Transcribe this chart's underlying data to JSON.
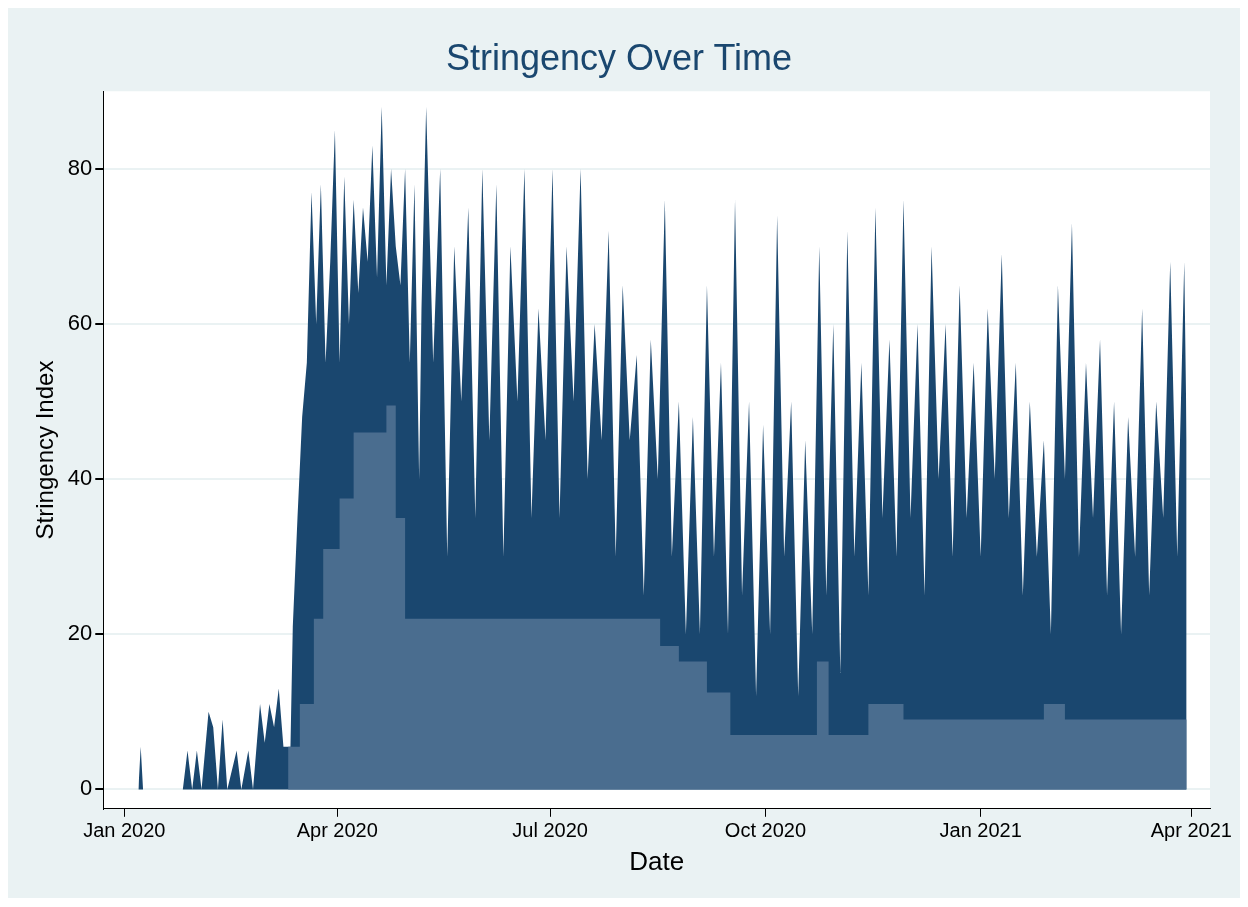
{
  "chart_data": {
    "type": "area",
    "title": "Stringency Over Time",
    "xlabel": "Date",
    "ylabel": "Stringency Index",
    "xlim": [
      "2019-12-23",
      "2021-04-09"
    ],
    "xticks": [
      {
        "value": "2020-01-01",
        "label": "Jan 2020"
      },
      {
        "value": "2020-04-01",
        "label": "Apr 2020"
      },
      {
        "value": "2020-07-01",
        "label": "Jul 2020"
      },
      {
        "value": "2020-10-01",
        "label": "Oct 2020"
      },
      {
        "value": "2021-01-01",
        "label": "Jan 2021"
      },
      {
        "value": "2021-04-01",
        "label": "Apr 2021"
      }
    ],
    "ylim": [
      -2.5,
      90
    ],
    "yticks": [
      0,
      20,
      40,
      60,
      80
    ],
    "grid": "y",
    "series": [
      {
        "color": "#1a476f",
        "x": [
          "2020-01-07",
          "2020-01-08",
          "2020-01-09",
          "2020-01-26",
          "2020-01-28",
          "2020-01-30",
          "2020-02-01",
          "2020-02-03",
          "2020-02-06",
          "2020-02-08",
          "2020-02-10",
          "2020-02-12",
          "2020-02-14",
          "2020-02-18",
          "2020-02-20",
          "2020-02-23",
          "2020-02-25",
          "2020-02-28",
          "2020-03-01",
          "2020-03-03",
          "2020-03-05",
          "2020-03-07",
          "2020-03-09",
          "2020-03-12",
          "2020-03-13",
          "2020-03-15",
          "2020-03-17",
          "2020-03-19",
          "2020-03-21",
          "2020-03-23",
          "2020-03-25",
          "2020-03-27",
          "2020-03-29",
          "2020-03-31",
          "2020-04-02",
          "2020-04-04",
          "2020-04-06",
          "2020-04-08",
          "2020-04-10",
          "2020-04-12",
          "2020-04-14",
          "2020-04-16",
          "2020-04-18",
          "2020-04-20",
          "2020-04-22",
          "2020-04-24",
          "2020-04-26",
          "2020-04-28",
          "2020-04-30",
          "2020-05-02",
          "2020-05-04",
          "2020-05-06",
          "2020-05-07",
          "2020-05-09",
          "2020-05-12",
          "2020-05-15",
          "2020-05-18",
          "2020-05-21",
          "2020-05-24",
          "2020-05-27",
          "2020-05-30",
          "2020-06-02",
          "2020-06-05",
          "2020-06-08",
          "2020-06-11",
          "2020-06-14",
          "2020-06-17",
          "2020-06-20",
          "2020-06-23",
          "2020-06-26",
          "2020-06-29",
          "2020-07-02",
          "2020-07-05",
          "2020-07-08",
          "2020-07-11",
          "2020-07-14",
          "2020-07-17",
          "2020-07-20",
          "2020-07-23",
          "2020-07-26",
          "2020-07-29",
          "2020-08-01",
          "2020-08-04",
          "2020-08-07",
          "2020-08-10",
          "2020-08-13",
          "2020-08-16",
          "2020-08-19",
          "2020-08-22",
          "2020-08-25",
          "2020-08-28",
          "2020-08-31",
          "2020-09-03",
          "2020-09-06",
          "2020-09-09",
          "2020-09-12",
          "2020-09-15",
          "2020-09-18",
          "2020-09-21",
          "2020-09-24",
          "2020-09-27",
          "2020-09-30",
          "2020-10-03",
          "2020-10-06",
          "2020-10-09",
          "2020-10-12",
          "2020-10-15",
          "2020-10-18",
          "2020-10-21",
          "2020-10-24",
          "2020-10-27",
          "2020-10-30",
          "2020-11-02",
          "2020-11-05",
          "2020-11-08",
          "2020-11-11",
          "2020-11-14",
          "2020-11-17",
          "2020-11-20",
          "2020-11-23",
          "2020-11-26",
          "2020-11-29",
          "2020-12-02",
          "2020-12-05",
          "2020-12-08",
          "2020-12-11",
          "2020-12-14",
          "2020-12-17",
          "2020-12-20",
          "2020-12-23",
          "2020-12-26",
          "2020-12-29",
          "2021-01-01",
          "2021-01-04",
          "2021-01-07",
          "2021-01-10",
          "2021-01-13",
          "2021-01-16",
          "2021-01-19",
          "2021-01-22",
          "2021-01-25",
          "2021-01-28",
          "2021-01-31",
          "2021-02-03",
          "2021-02-06",
          "2021-02-09",
          "2021-02-12",
          "2021-02-15",
          "2021-02-18",
          "2021-02-21",
          "2021-02-24",
          "2021-02-27",
          "2021-03-02",
          "2021-03-05",
          "2021-03-08",
          "2021-03-11",
          "2021-03-14",
          "2021-03-17",
          "2021-03-20",
          "2021-03-23",
          "2021-03-26",
          "2021-03-29",
          "2021-03-30",
          "2021-03-30"
        ],
        "values": [
          0,
          5.5,
          0,
          0,
          5,
          0,
          5,
          0,
          10,
          8,
          0,
          9,
          0,
          5,
          0,
          5,
          0,
          11,
          6,
          11,
          8,
          13,
          5.5,
          5.5,
          21,
          35,
          48,
          55,
          77,
          60,
          78,
          55,
          68,
          85,
          55,
          79,
          60,
          76,
          64,
          75,
          68,
          83,
          66,
          88,
          65,
          80,
          70,
          65,
          80,
          55,
          78,
          40,
          62,
          88,
          55,
          80,
          30,
          70,
          50,
          75,
          35,
          80,
          45,
          78,
          30,
          70,
          50,
          80,
          35,
          62,
          45,
          80,
          35,
          70,
          50,
          80,
          40,
          60,
          45,
          72,
          30,
          65,
          45,
          56,
          25,
          58,
          40,
          76,
          30,
          50,
          20,
          48,
          20,
          65,
          30,
          55,
          20,
          76,
          25,
          50,
          12,
          47,
          20,
          74,
          30,
          50,
          12,
          45,
          20,
          70,
          25,
          60,
          15,
          72,
          30,
          55,
          25,
          75,
          35,
          58,
          30,
          76,
          35,
          60,
          25,
          70,
          40,
          60,
          30,
          65,
          35,
          55,
          30,
          62,
          40,
          69,
          35,
          55,
          25,
          50,
          30,
          45,
          20,
          65,
          40,
          73,
          30,
          55,
          35,
          58,
          25,
          50,
          20,
          48,
          30,
          62,
          25,
          50,
          35,
          68,
          30,
          68,
          45,
          0
        ]
      },
      {
        "color": "#4a6d8f",
        "x": [
          "2020-03-11",
          "2020-03-11",
          "2020-03-16",
          "2020-03-16",
          "2020-03-22",
          "2020-03-22",
          "2020-03-26",
          "2020-03-26",
          "2020-04-02",
          "2020-04-02",
          "2020-04-08",
          "2020-04-08",
          "2020-04-22",
          "2020-04-22",
          "2020-04-26",
          "2020-04-26",
          "2020-04-30",
          "2020-04-30",
          "2020-08-17",
          "2020-08-17",
          "2020-08-25",
          "2020-08-25",
          "2020-09-06",
          "2020-09-06",
          "2020-09-16",
          "2020-09-16",
          "2020-10-23",
          "2020-10-23",
          "2020-10-28",
          "2020-10-28",
          "2020-11-14",
          "2020-11-14",
          "2020-11-29",
          "2020-11-29",
          "2021-01-28",
          "2021-01-28",
          "2021-02-06",
          "2021-02-06",
          "2021-03-30",
          "2021-03-30"
        ],
        "values": [
          0,
          5.5,
          5.5,
          11,
          11,
          22,
          22,
          31,
          31,
          37.5,
          37.5,
          46,
          46,
          49.5,
          49.5,
          35,
          35,
          22,
          22,
          18.5,
          18.5,
          16.5,
          16.5,
          12.5,
          12.5,
          7,
          7,
          16.5,
          16.5,
          7,
          7,
          11,
          11,
          9,
          9,
          11,
          11,
          9,
          9,
          0
        ]
      }
    ]
  }
}
